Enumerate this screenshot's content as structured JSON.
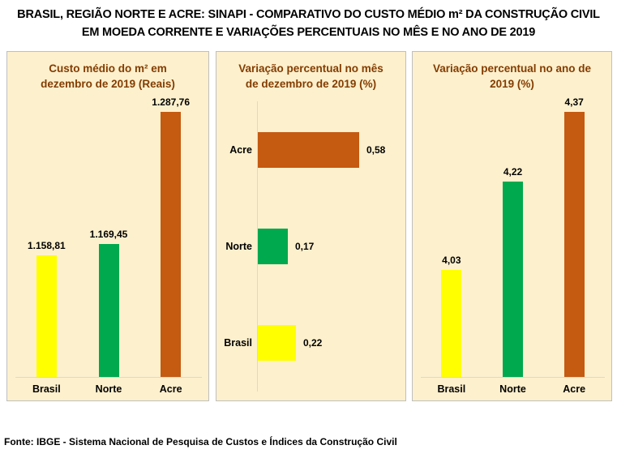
{
  "title": {
    "line1": "BRASIL, REGIÃO NORTE E ACRE: SINAPI - COMPARATIVO DO CUSTO MÉDIO m² DA CONSTRUÇÃO CIVIL",
    "line2": "EM MOEDA CORRENTE E VARIAÇÕES PERCENTUAIS NO MÊS E NO ANO DE 2019"
  },
  "footer": {
    "source": "Fonte: IBGE - Sistema Nacional de Pesquisa de Custos e Índices da Construção Civil"
  },
  "colors": {
    "panel_background": "#FDF0CD",
    "panel_border": "#BFBFBF",
    "header_text": "#833C00",
    "axis_line": "#D9D9D9",
    "bar_brasil": "#FFFF00",
    "bar_norte": "#00A94E",
    "bar_acre": "#C55A11",
    "label_text": "#000000"
  },
  "chart_data": [
    {
      "type": "bar",
      "orientation": "vertical",
      "title": "Custo médio do m² em dezembro de 2019 (Reais)",
      "title_lines": [
        "Custo médio do m² em",
        "dezembro de 2019 (Reais)"
      ],
      "categories": [
        "Brasil",
        "Norte",
        "Acre"
      ],
      "values": [
        1158.81,
        1169.45,
        1287.76
      ],
      "value_labels": [
        "1.158,81",
        "1.169,45",
        "1.287,76"
      ],
      "bar_colors": [
        "#FFFF00",
        "#00A94E",
        "#C55A11"
      ],
      "ylim": [
        1050,
        1300
      ],
      "grid": false,
      "legend": false
    },
    {
      "type": "bar",
      "orientation": "horizontal",
      "title": "Variação percentual no mês de dezembro de 2019 (%)",
      "title_lines": [
        "Variação percentual no mês",
        "de dezembro de 2019 (%)"
      ],
      "categories": [
        "Acre",
        "Norte",
        "Brasil"
      ],
      "values": [
        0.58,
        0.17,
        0.22
      ],
      "value_labels": [
        "0,58",
        "0,17",
        "0,22"
      ],
      "bar_colors": [
        "#C55A11",
        "#00A94E",
        "#FFFF00"
      ],
      "xlim": [
        0,
        0.65
      ],
      "grid": false,
      "legend": false
    },
    {
      "type": "bar",
      "orientation": "vertical",
      "title": "Variação percentual no ano de 2019 (%)",
      "title_lines": [
        "Variação percentual no ano de",
        "2019 (%)"
      ],
      "categories": [
        "Brasil",
        "Norte",
        "Acre"
      ],
      "values": [
        4.03,
        4.22,
        4.37
      ],
      "value_labels": [
        "4,03",
        "4,22",
        "4,37"
      ],
      "bar_colors": [
        "#FFFF00",
        "#00A94E",
        "#C55A11"
      ],
      "ylim": [
        3.8,
        4.4
      ],
      "grid": false,
      "legend": false
    }
  ]
}
